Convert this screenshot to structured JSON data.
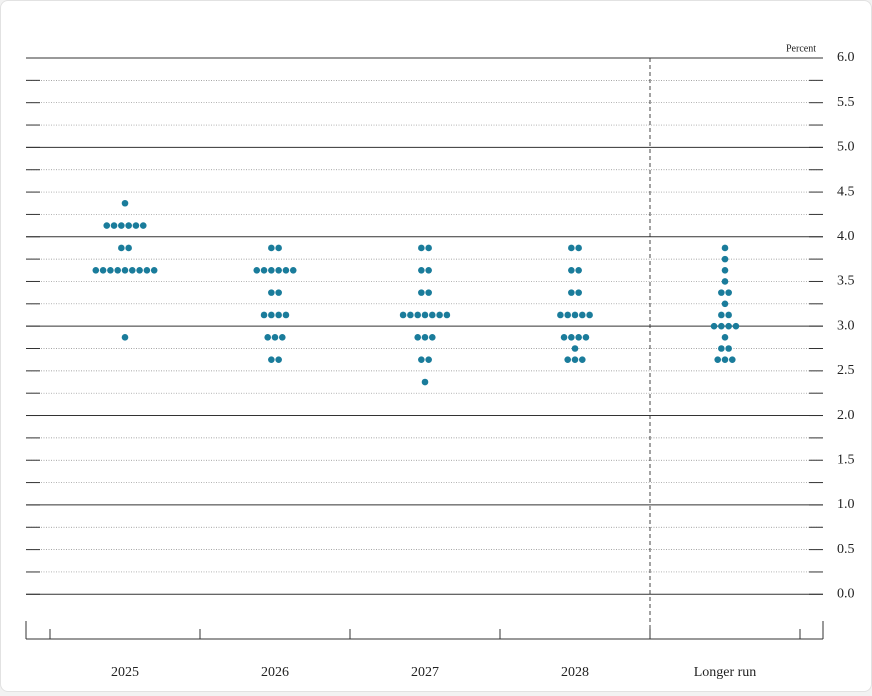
{
  "chart_data": {
    "type": "dot",
    "y_label": "Percent",
    "categories": [
      "2025",
      "2026",
      "2027",
      "2028",
      "Longer run"
    ],
    "color": "#1a7c9b",
    "dots": [
      [
        {
          "rate": 4.375,
          "count": 1
        },
        {
          "rate": 4.125,
          "count": 6
        },
        {
          "rate": 3.875,
          "count": 2
        },
        {
          "rate": 3.625,
          "count": 9
        },
        {
          "rate": 2.875,
          "count": 1
        }
      ],
      [
        {
          "rate": 3.875,
          "count": 2
        },
        {
          "rate": 3.625,
          "count": 6
        },
        {
          "rate": 3.375,
          "count": 2
        },
        {
          "rate": 3.125,
          "count": 4
        },
        {
          "rate": 2.875,
          "count": 3
        },
        {
          "rate": 2.625,
          "count": 2
        }
      ],
      [
        {
          "rate": 3.875,
          "count": 2
        },
        {
          "rate": 3.625,
          "count": 2
        },
        {
          "rate": 3.375,
          "count": 2
        },
        {
          "rate": 3.125,
          "count": 7
        },
        {
          "rate": 2.875,
          "count": 3
        },
        {
          "rate": 2.625,
          "count": 2
        },
        {
          "rate": 2.375,
          "count": 1
        }
      ],
      [
        {
          "rate": 3.875,
          "count": 2
        },
        {
          "rate": 3.625,
          "count": 2
        },
        {
          "rate": 3.375,
          "count": 2
        },
        {
          "rate": 3.125,
          "count": 5
        },
        {
          "rate": 2.875,
          "count": 4
        },
        {
          "rate": 2.75,
          "count": 1
        },
        {
          "rate": 2.625,
          "count": 3
        }
      ],
      [
        {
          "rate": 3.875,
          "count": 1
        },
        {
          "rate": 3.75,
          "count": 1
        },
        {
          "rate": 3.625,
          "count": 1
        },
        {
          "rate": 3.5,
          "count": 1
        },
        {
          "rate": 3.375,
          "count": 2
        },
        {
          "rate": 3.25,
          "count": 1
        },
        {
          "rate": 3.125,
          "count": 2
        },
        {
          "rate": 3.0,
          "count": 4
        },
        {
          "rate": 2.875,
          "count": 1
        },
        {
          "rate": 2.75,
          "count": 2
        },
        {
          "rate": 2.625,
          "count": 3
        }
      ]
    ],
    "ylim": [
      -0.5,
      6.0
    ],
    "yticks": [
      {
        "value": 0,
        "label": "0.0"
      },
      0.5,
      {
        "value": 1,
        "label": "1.0"
      },
      1.5,
      {
        "value": 2,
        "label": "2.0"
      },
      2.5,
      {
        "value": 3,
        "label": "3.0"
      },
      3.5,
      {
        "value": 4,
        "label": "4.0"
      },
      4.5,
      {
        "value": 5,
        "label": "5.0"
      },
      5.5,
      {
        "value": 6,
        "label": "6.0"
      }
    ],
    "minor_gridlines": [
      0.25,
      0.75,
      1.25,
      1.75,
      2.25,
      2.75,
      3.25,
      3.75,
      4.25,
      4.75,
      5.25,
      5.75
    ],
    "grid": true
  }
}
